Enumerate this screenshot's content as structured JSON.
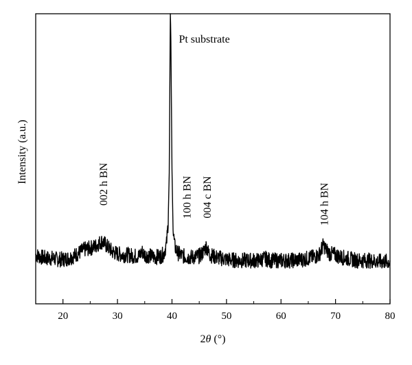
{
  "chart_data": {
    "type": "line",
    "xlabel_prefix": "2",
    "xlabel_symbol": "θ",
    "xlabel_suffix": " (°)",
    "ylabel": "Intensity (a.u.)",
    "xlim": [
      15,
      80
    ],
    "xticks": [
      "20",
      "30",
      "40",
      "50",
      "60",
      "70",
      "80"
    ],
    "yticks_shown": false,
    "grid": false,
    "legend": "none",
    "line_color": "#000000",
    "series": [
      {
        "x": [
          15,
          16,
          17,
          18,
          19,
          20,
          21,
          22,
          23,
          24,
          25,
          26,
          26.5,
          27,
          27.5,
          28,
          28.5,
          29,
          30,
          31,
          32,
          33,
          34,
          34.5,
          35,
          36,
          37,
          38,
          38.5,
          39,
          39.3,
          39.5,
          39.7,
          39.8,
          40,
          40.2,
          40.5,
          41,
          42,
          43,
          44,
          45,
          45.5,
          46,
          46.3,
          46.6,
          47,
          48,
          49,
          50,
          52,
          54,
          56,
          57,
          58,
          60,
          62,
          64,
          66,
          67,
          67.5,
          67.8,
          68.2,
          69,
          70,
          71,
          72,
          74,
          76,
          78,
          80
        ],
        "y": [
          18,
          16,
          15,
          15,
          14,
          14,
          15,
          17,
          20,
          23,
          24,
          26,
          28,
          30,
          29,
          26,
          24,
          21,
          19,
          18,
          18,
          17,
          17,
          21,
          18,
          17,
          16,
          17,
          19,
          28,
          48,
          92,
          240,
          210,
          95,
          40,
          26,
          20,
          17,
          16,
          16,
          17,
          19,
          23,
          26,
          21,
          18,
          16,
          15,
          14,
          13,
          13,
          13,
          15,
          13,
          13,
          13,
          14,
          16,
          18,
          24,
          27,
          23,
          19,
          18,
          16,
          15,
          13,
          13,
          12,
          12
        ]
      }
    ],
    "annotations": [
      {
        "text": "Pt substrate",
        "x": 40.0,
        "rotation": "horizontal"
      },
      {
        "text": "002 h BN",
        "x": 27.5,
        "rotation": "vertical"
      },
      {
        "text": "100 h BN",
        "x": 42.8,
        "rotation": "vertical"
      },
      {
        "text": "004 c BN",
        "x": 46.5,
        "rotation": "vertical"
      },
      {
        "text": "104 h BN",
        "x": 68.0,
        "rotation": "vertical"
      }
    ]
  }
}
